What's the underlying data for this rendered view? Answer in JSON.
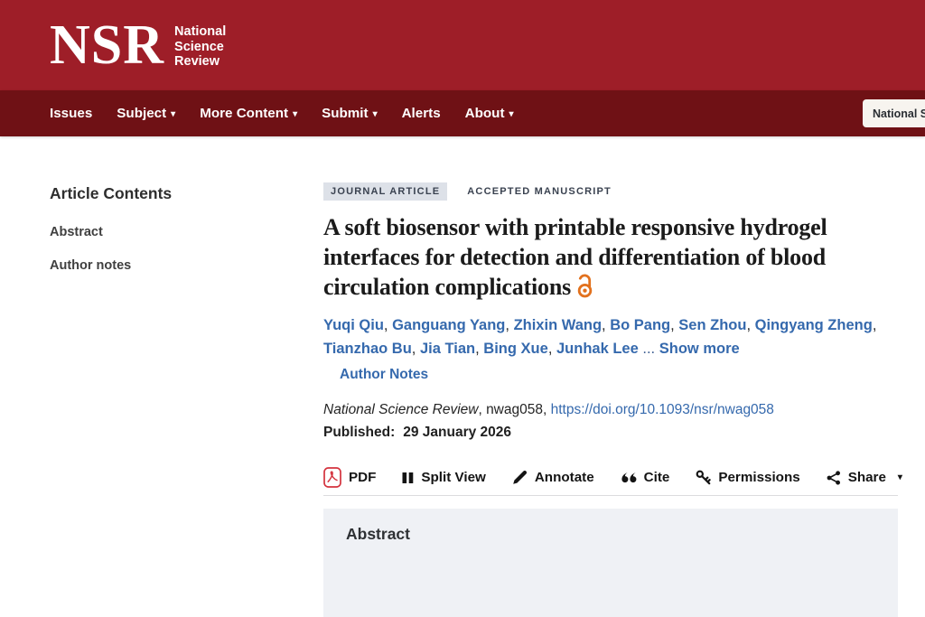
{
  "header": {
    "logo": {
      "acronym": "NSR",
      "name_lines": [
        "National",
        "Science",
        "Review"
      ]
    }
  },
  "nav": {
    "items": [
      {
        "label": "Issues",
        "has_dropdown": false
      },
      {
        "label": "Subject",
        "has_dropdown": true
      },
      {
        "label": "More Content",
        "has_dropdown": true
      },
      {
        "label": "Submit",
        "has_dropdown": true
      },
      {
        "label": "Alerts",
        "has_dropdown": false
      },
      {
        "label": "About",
        "has_dropdown": true
      }
    ],
    "journal_search_value": "National Science Review"
  },
  "sidebar": {
    "title": "Article Contents",
    "items": [
      {
        "label": "Abstract"
      },
      {
        "label": "Author notes"
      }
    ]
  },
  "article": {
    "badges": [
      {
        "label": "JOURNAL ARTICLE",
        "highlighted": true
      },
      {
        "label": "ACCEPTED MANUSCRIPT",
        "highlighted": false
      }
    ],
    "title": "A soft biosensor with printable responsive hydrogel interfaces for detection and differentiation of blood circulation complications",
    "open_access_icon": "open-access-lock-icon",
    "authors": [
      "Yuqi Qiu",
      "Ganguang Yang",
      "Zhixin Wang",
      "Bo Pang",
      "Sen Zhou",
      "Qingyang Zheng",
      "Tianzhao Bu",
      "Jia Tian",
      "Bing Xue",
      "Junhak Lee"
    ],
    "authors_separator": ", ",
    "authors_ellipsis": "...",
    "show_more_label": "Show more",
    "author_notes_label": "Author Notes",
    "citation_segments": [
      {
        "text": "National Science Review",
        "style": "italic"
      },
      {
        "text": ", nwag058, ",
        "style": "plain"
      },
      {
        "text": "https://doi.org/10.1093/nsr/nwag058",
        "style": "link"
      }
    ],
    "published_label": "Published:",
    "published_date": "29 January 2026",
    "toolbar": [
      {
        "label": "PDF",
        "icon": "pdf-icon",
        "has_dropdown": false
      },
      {
        "label": "Split View",
        "icon": "split-view-icon",
        "has_dropdown": false
      },
      {
        "label": "Annotate",
        "icon": "annotate-pencil-icon",
        "has_dropdown": false
      },
      {
        "label": "Cite",
        "icon": "cite-quotes-icon",
        "has_dropdown": false
      },
      {
        "label": "Permissions",
        "icon": "permissions-key-icon",
        "has_dropdown": false
      },
      {
        "label": "Share",
        "icon": "share-nodes-icon",
        "has_dropdown": true
      }
    ],
    "abstract_heading": "Abstract"
  },
  "colors": {
    "header_red": "#9E1E28",
    "nav_red": "#6F1115",
    "link_blue": "#3569AD",
    "badge_bg": "#DDE1E8",
    "badge_text": "#3A4250",
    "abstract_bg": "#EFF1F5",
    "open_access_orange": "#E2711D",
    "pdf_red": "#D4333E"
  }
}
